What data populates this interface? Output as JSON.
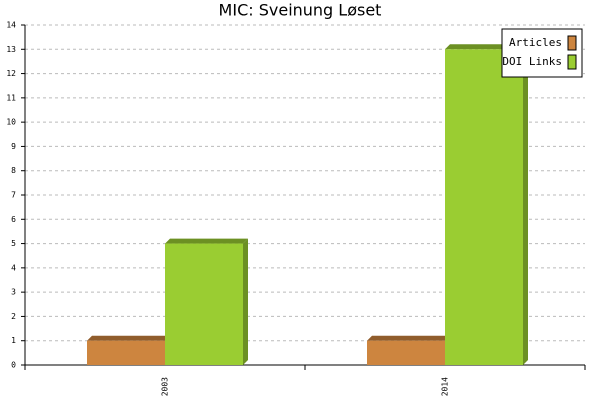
{
  "chart_data": {
    "type": "bar",
    "title": "MIC: Sveinung Løset",
    "categories": [
      "2003",
      "2014"
    ],
    "series": [
      {
        "name": "Articles",
        "color": "#cd853f",
        "values": [
          1,
          1
        ]
      },
      {
        "name": "DOI Links",
        "color": "#9acd32",
        "values": [
          5,
          13
        ]
      }
    ],
    "ylim": [
      0,
      14
    ],
    "yticks": [
      0,
      1,
      2,
      3,
      4,
      5,
      6,
      7,
      8,
      9,
      10,
      11,
      12,
      13,
      14
    ],
    "grid": true,
    "legend": "top-right"
  }
}
